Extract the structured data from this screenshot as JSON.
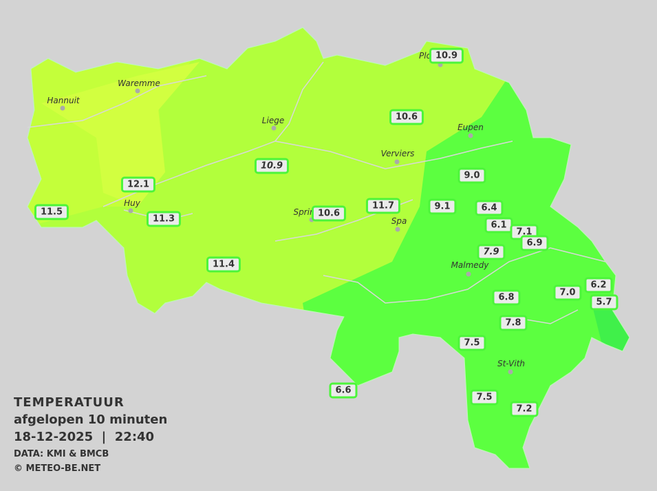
{
  "legend": {
    "title": "TEMPERATUUR",
    "subtitle": "afgelopen 10 minuten",
    "datetime": "18-12-2025  |  22:40",
    "source": "DATA: KMI & BMCB",
    "copyright": "© METEO-BE.NET"
  },
  "colors": {
    "background": "#d3d3d3",
    "warm": "#d0ff3c",
    "mild": "#b2ff3c",
    "cool": "#5cff40",
    "coldest": "#44f848",
    "label_border": "#4cf53a"
  },
  "cities": [
    "Waremme",
    "Hannuit",
    "Liege",
    "Verviers",
    "Eupen",
    "Huy",
    "Sprin",
    "Spa",
    "Malmedy",
    "St-Vith",
    "Plo"
  ],
  "stations": [
    {
      "value": "10.9"
    },
    {
      "value": "10.6"
    },
    {
      "value": "10.9",
      "italic": true
    },
    {
      "value": "9.0"
    },
    {
      "value": "12.1"
    },
    {
      "value": "11.5"
    },
    {
      "value": "11.3"
    },
    {
      "value": "10.6"
    },
    {
      "value": "11.7"
    },
    {
      "value": "9.1"
    },
    {
      "value": "6.4"
    },
    {
      "value": "6.1"
    },
    {
      "value": "7.1"
    },
    {
      "value": "6.9"
    },
    {
      "value": "7.9",
      "italic": true
    },
    {
      "value": "11.4"
    },
    {
      "value": "6.8"
    },
    {
      "value": "7.0"
    },
    {
      "value": "6.2"
    },
    {
      "value": "5.7"
    },
    {
      "value": "7.8"
    },
    {
      "value": "7.5"
    },
    {
      "value": "6.6"
    },
    {
      "value": "7.5"
    },
    {
      "value": "7.2"
    }
  ]
}
